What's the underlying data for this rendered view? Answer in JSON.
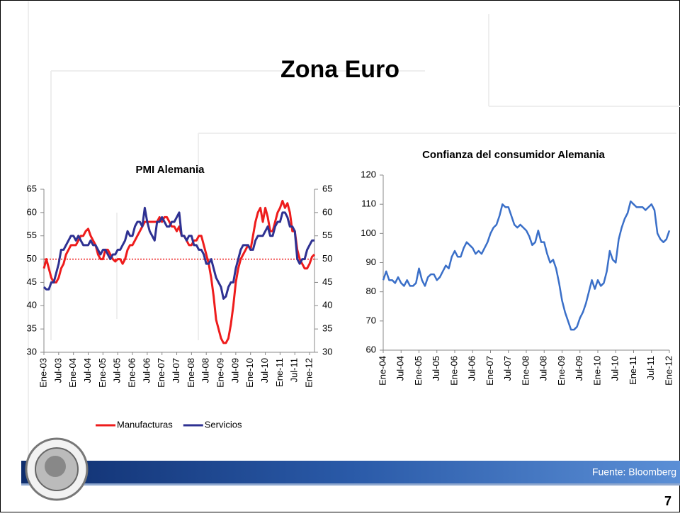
{
  "slide": {
    "title": "Zona Euro",
    "source": "Fuente: Bloomberg",
    "page": 7
  },
  "chart_data": [
    {
      "type": "line",
      "title": "PMI Alemania",
      "categories": [
        "Ene-03",
        null,
        null,
        null,
        null,
        null,
        "Jul-03",
        null,
        null,
        null,
        null,
        null,
        "Ene-04",
        null,
        null,
        null,
        null,
        null,
        "Jul-04",
        null,
        null,
        null,
        null,
        null,
        "Ene-05",
        null,
        null,
        null,
        null,
        null,
        "Jul-05",
        null,
        null,
        null,
        null,
        null,
        "Ene-06",
        null,
        null,
        null,
        null,
        null,
        "Jul-06",
        null,
        null,
        null,
        null,
        null,
        "Ene-07",
        null,
        null,
        null,
        null,
        null,
        "Jul-07",
        null,
        null,
        null,
        null,
        null,
        "Ene-08",
        null,
        null,
        null,
        null,
        null,
        "Jul-08",
        null,
        null,
        null,
        null,
        null,
        "Ene-09",
        null,
        null,
        null,
        null,
        null,
        "Jul-09",
        null,
        null,
        null,
        null,
        null,
        "Ene-10",
        null,
        null,
        null,
        null,
        null,
        "Jul-10",
        null,
        null,
        null,
        null,
        null,
        "Ene-11",
        null,
        null,
        null,
        null,
        null,
        "Jul-11",
        null,
        null,
        null,
        null,
        null,
        "Ene-12",
        null,
        null
      ],
      "series": [
        {
          "name": "Manufacturas",
          "color": "#ee1c1c",
          "values": [
            48,
            50,
            48,
            46,
            45,
            45,
            46,
            48,
            49,
            51,
            52,
            53,
            53,
            53,
            54,
            55,
            55,
            56,
            56.5,
            55,
            54,
            53,
            51,
            50,
            50,
            52,
            52,
            51,
            50,
            49.5,
            50,
            50,
            49,
            50,
            52,
            53,
            53,
            54,
            55,
            56,
            57,
            58,
            58,
            58,
            58,
            58,
            58,
            59,
            58,
            59,
            59,
            58,
            57,
            57,
            56,
            57,
            55,
            55,
            54,
            53,
            53,
            54,
            54,
            55,
            55,
            53,
            51,
            49,
            46,
            42,
            37,
            35,
            33,
            32,
            32,
            33,
            36,
            40,
            45,
            48,
            50,
            51,
            52,
            53,
            52,
            55,
            58,
            60,
            61,
            58,
            61,
            59,
            56,
            56,
            58,
            60,
            61,
            62.5,
            61,
            62,
            60,
            56,
            56,
            52,
            50,
            49,
            48,
            48,
            49,
            50.5,
            51
          ]
        },
        {
          "name": "Servicios",
          "color": "#2e3192",
          "values": [
            44,
            43.5,
            43.5,
            45,
            45,
            47,
            49,
            52,
            52,
            53,
            54,
            55,
            55,
            54,
            55,
            54,
            53,
            53,
            53,
            54,
            53,
            53,
            52,
            51,
            52,
            52,
            51,
            50,
            51,
            51,
            52,
            52,
            53,
            54,
            56,
            55,
            55,
            57,
            58,
            58,
            57,
            61,
            58,
            56,
            55,
            54,
            58,
            58,
            59,
            58,
            57,
            57,
            58,
            58,
            59,
            60,
            55,
            55,
            54,
            55,
            55,
            53,
            53,
            52,
            52,
            51,
            49,
            49,
            50,
            48,
            46,
            45,
            44,
            41.5,
            42,
            44,
            45,
            45,
            48,
            50,
            52,
            53,
            53,
            53,
            52,
            52,
            54,
            55,
            55,
            55,
            56,
            57,
            55,
            55,
            57,
            58,
            58,
            60,
            60,
            59,
            57,
            57,
            56,
            50,
            49,
            50,
            50,
            52,
            53,
            54,
            54
          ]
        }
      ],
      "ylim": [
        30,
        65
      ],
      "yticks": [
        30,
        35,
        40,
        45,
        50,
        55,
        60,
        65
      ],
      "y2lim": [
        30,
        65
      ],
      "y2ticks": [
        30,
        35,
        40,
        45,
        50,
        55,
        60,
        65
      ],
      "reference_line": {
        "value": 50,
        "color": "#ee1c1c"
      },
      "legend": "bottom"
    },
    {
      "type": "line",
      "title": "Confianza del consumidor Alemania",
      "categories": [
        "Ene-04",
        null,
        null,
        null,
        null,
        null,
        "Jul-04",
        null,
        null,
        null,
        null,
        null,
        "Ene-05",
        null,
        null,
        null,
        null,
        null,
        "Jul-05",
        null,
        null,
        null,
        null,
        null,
        "Ene-06",
        null,
        null,
        null,
        null,
        null,
        "Jul-06",
        null,
        null,
        null,
        null,
        null,
        "Ene-07",
        null,
        null,
        null,
        null,
        null,
        "Jul-07",
        null,
        null,
        null,
        null,
        null,
        "Ene-08",
        null,
        null,
        null,
        null,
        null,
        "Jul-08",
        null,
        null,
        null,
        null,
        null,
        "Ene-09",
        null,
        null,
        null,
        null,
        null,
        "Jul-09",
        null,
        null,
        null,
        null,
        null,
        "Ene-10",
        null,
        null,
        null,
        null,
        null,
        "Jul-10",
        null,
        null,
        null,
        null,
        null,
        "Ene-11",
        null,
        null,
        null,
        null,
        null,
        "Jul-11",
        null,
        null,
        null,
        null,
        null,
        "Ene-12"
      ],
      "color": "#3a6fc8",
      "values": [
        84,
        87,
        84,
        84,
        83,
        85,
        83,
        82,
        84,
        82,
        82,
        83,
        88,
        84,
        82,
        85,
        86,
        86,
        84,
        85,
        87,
        89,
        88,
        92,
        94,
        92,
        92,
        95,
        97,
        96,
        95,
        93,
        94,
        93,
        95,
        97,
        100,
        102,
        103,
        106,
        110,
        109,
        109,
        106,
        103,
        102,
        103,
        102,
        101,
        99,
        96,
        97,
        101,
        97,
        97,
        93,
        90,
        91,
        88,
        83,
        77,
        73,
        70,
        67,
        67,
        68,
        71,
        73,
        76,
        80,
        84,
        81,
        84,
        82,
        83,
        87,
        94,
        91,
        90,
        98,
        102,
        105,
        107,
        111,
        110,
        109,
        109,
        109,
        108,
        109,
        110,
        108,
        100,
        98,
        97,
        98,
        101
      ],
      "ylim": [
        60,
        120
      ],
      "yticks": [
        60,
        70,
        80,
        90,
        100,
        110,
        120
      ]
    }
  ]
}
